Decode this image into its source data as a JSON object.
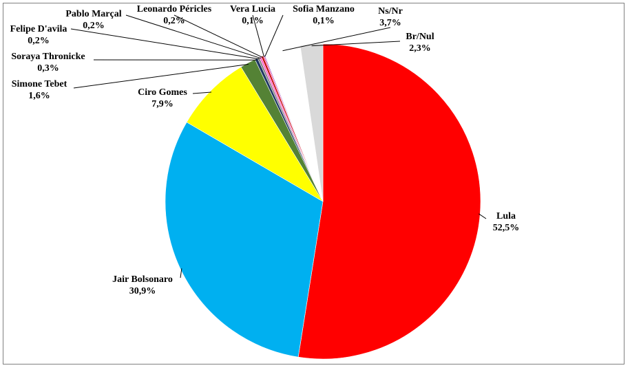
{
  "chart_data": {
    "type": "pie",
    "categories": [
      "Lula",
      "Jair Bolsonaro",
      "Ciro Gomes",
      "Simone Tebet",
      "Soraya Thronicke",
      "Felipe D'avila",
      "Pablo Marçal",
      "Leonardo Péricles",
      "Vera Lucia",
      "Sofia Manzano",
      "Ns/Nr",
      "Br/Nul"
    ],
    "values": [
      52.5,
      30.9,
      7.9,
      1.6,
      0.3,
      0.2,
      0.2,
      0.2,
      0.1,
      0.1,
      3.7,
      2.3
    ],
    "value_labels": [
      "52,5%",
      "30,9%",
      "7,9%",
      "1,6%",
      "0,3%",
      "0,2%",
      "0,2%",
      "0,2%",
      "0,1%",
      "0,1%",
      "3,7%",
      "2,3%"
    ],
    "colors": [
      "#ff0000",
      "#00b0f0",
      "#ffff00",
      "#548235",
      "#203864",
      "#7f7f7f",
      "#ff66cc",
      "#c00000",
      "#ff0066",
      "#9966cc",
      "#ffffff",
      "#d9d9d9"
    ],
    "start_angle_deg": 0,
    "direction": "clockwise",
    "title": "",
    "legend": "none"
  }
}
